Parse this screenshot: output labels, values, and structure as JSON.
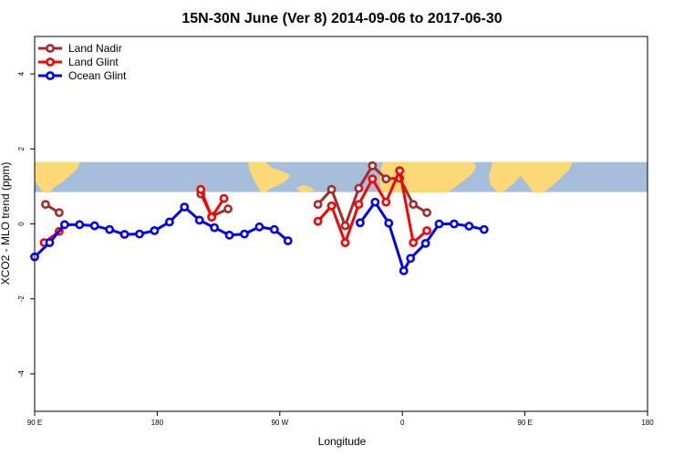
{
  "chart_data": {
    "type": "line",
    "title": "15N-30N June (Ver 8)   2014-09-06 to 2017-06-30",
    "xlabel": "Longitude",
    "ylabel": "XCO2 - MLO trend (ppm)",
    "xlim": [
      90,
      450
    ],
    "ylim": [
      -5,
      5
    ],
    "x_ticks": [
      {
        "value": 90,
        "label": "90 E"
      },
      {
        "value": 180,
        "label": "180"
      },
      {
        "value": 270,
        "label": "90 W"
      },
      {
        "value": 360,
        "label": "0"
      },
      {
        "value": 450,
        "label": "90 E"
      },
      {
        "value": 540,
        "label": "180"
      }
    ],
    "x_tick_note": "tick values are longitude measured eastward continuously from 90 E",
    "y_ticks": [
      -4,
      -2,
      0,
      2,
      4
    ],
    "legend_position": "top-left",
    "map_band": {
      "ymin": 0.85,
      "ymax": 1.65,
      "ocean_color": "#a6bddb",
      "land_color": "#fdd876"
    },
    "series": [
      {
        "name": "Land Nadir",
        "color": "#a52a2a",
        "segments": [
          [
            [
              98,
              0.52
            ],
            [
              108,
              0.3
            ]
          ],
          [
            [
              212,
              0.8
            ],
            [
              220,
              0.2
            ],
            [
              232,
              0.4
            ]
          ],
          [
            [
              298,
              0.52
            ],
            [
              308,
              0.92
            ],
            [
              318,
              -0.05
            ],
            [
              328,
              0.95
            ],
            [
              338,
              1.55
            ],
            [
              348,
              1.2
            ],
            [
              358,
              1.22
            ],
            [
              368,
              0.52
            ],
            [
              378,
              0.3
            ]
          ]
        ]
      },
      {
        "name": "Land Glint",
        "color": "#ff0000",
        "segments": [
          [
            [
              97,
              -0.5
            ],
            [
              108,
              -0.2
            ]
          ],
          [
            [
              212,
              0.92
            ],
            [
              220,
              0.18
            ],
            [
              229,
              0.68
            ]
          ],
          [
            [
              298,
              0.07
            ],
            [
              308,
              0.48
            ],
            [
              318,
              -0.5
            ],
            [
              328,
              0.52
            ],
            [
              338,
              1.2
            ],
            [
              348,
              0.58
            ],
            [
              358,
              1.42
            ],
            [
              368,
              -0.5
            ],
            [
              378,
              -0.18
            ]
          ]
        ]
      },
      {
        "name": "Ocean Glint",
        "color": "#0000ff",
        "segments": [
          [
            [
              90,
              -0.88
            ],
            [
              101,
              -0.5
            ],
            [
              112,
              -0.02
            ],
            [
              123,
              -0.02
            ],
            [
              134,
              -0.05
            ],
            [
              145,
              -0.15
            ],
            [
              156,
              -0.28
            ],
            [
              167,
              -0.27
            ],
            [
              178,
              -0.18
            ],
            [
              189,
              0.05
            ],
            [
              200,
              0.45
            ],
            [
              211,
              0.1
            ],
            [
              222,
              -0.1
            ],
            [
              233,
              -0.3
            ],
            [
              244,
              -0.27
            ],
            [
              255,
              -0.08
            ],
            [
              266,
              -0.15
            ],
            [
              276,
              -0.45
            ]
          ],
          [
            [
              329,
              0.03
            ],
            [
              340,
              0.58
            ],
            [
              350,
              0.02
            ],
            [
              361,
              -1.25
            ],
            [
              366,
              -0.92
            ],
            [
              377,
              -0.52
            ],
            [
              387,
              0.0
            ],
            [
              398,
              0.0
            ],
            [
              409,
              -0.06
            ],
            [
              420,
              -0.15
            ]
          ]
        ]
      }
    ]
  }
}
